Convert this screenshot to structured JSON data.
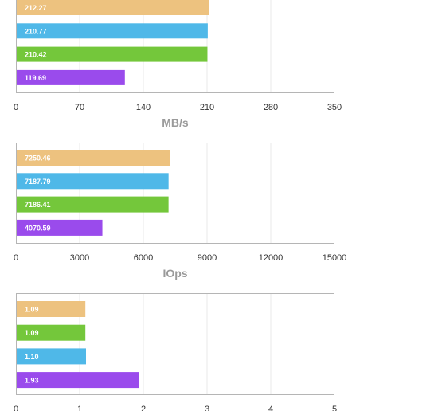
{
  "colors": {
    "orange": "#edc27f",
    "blue": "#4fb8e8",
    "green": "#74c73b",
    "purple": "#9a4bec"
  },
  "chart_data": [
    {
      "type": "bar",
      "orientation": "horizontal",
      "xlabel": "MB/s",
      "xlim": [
        0,
        350
      ],
      "ticks": [
        "0",
        "70",
        "140",
        "210",
        "280",
        "350"
      ],
      "grid": true,
      "bars": [
        {
          "value": 212.27,
          "label": "212.27",
          "color": "orange"
        },
        {
          "value": 210.77,
          "label": "210.77",
          "color": "blue"
        },
        {
          "value": 210.42,
          "label": "210.42",
          "color": "green"
        },
        {
          "value": 119.69,
          "label": "119.69",
          "color": "purple"
        }
      ]
    },
    {
      "type": "bar",
      "orientation": "horizontal",
      "xlabel": "IOps",
      "xlim": [
        0,
        15000
      ],
      "ticks": [
        "0",
        "3000",
        "6000",
        "9000",
        "12000",
        "15000"
      ],
      "grid": true,
      "bars": [
        {
          "value": 7250.46,
          "label": "7250.46",
          "color": "orange"
        },
        {
          "value": 7187.79,
          "label": "7187.79",
          "color": "blue"
        },
        {
          "value": 7186.41,
          "label": "7186.41",
          "color": "green"
        },
        {
          "value": 4070.59,
          "label": "4070.59",
          "color": "purple"
        }
      ]
    },
    {
      "type": "bar",
      "orientation": "horizontal",
      "xlabel": "",
      "xlim": [
        0,
        5
      ],
      "ticks": [
        "0",
        "1",
        "2",
        "3",
        "4",
        "5"
      ],
      "grid": true,
      "bars": [
        {
          "value": 1.09,
          "label": "1.09",
          "color": "orange"
        },
        {
          "value": 1.09,
          "label": "1.09",
          "color": "green"
        },
        {
          "value": 1.1,
          "label": "1.10",
          "color": "blue"
        },
        {
          "value": 1.93,
          "label": "1.93",
          "color": "purple"
        }
      ]
    }
  ]
}
